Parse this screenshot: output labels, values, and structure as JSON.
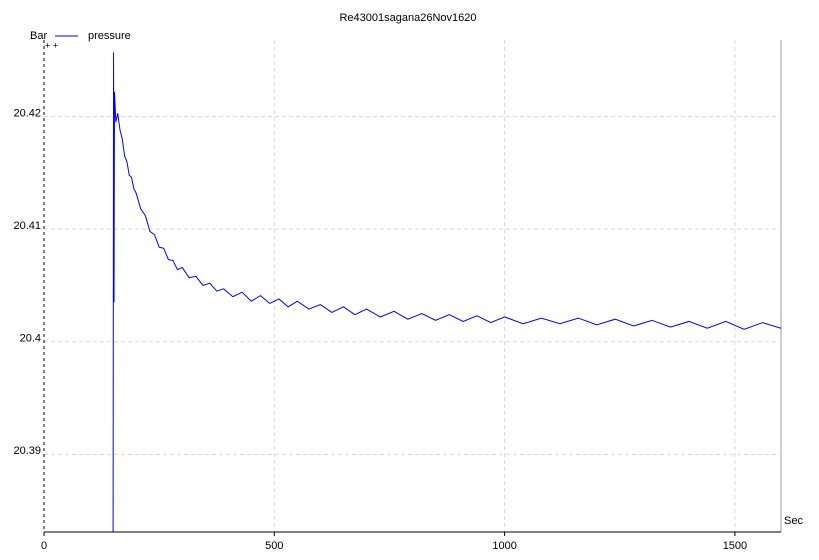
{
  "chart_data": {
    "type": "line",
    "title": "Re43001sagana26Nov1620",
    "y_label": "Bar",
    "x_label": "Sec",
    "x": [
      150,
      151,
      152,
      153,
      156,
      160,
      165,
      170,
      175,
      180,
      185,
      190,
      195,
      200,
      210,
      220,
      230,
      240,
      250,
      260,
      270,
      280,
      290,
      300,
      315,
      330,
      345,
      360,
      375,
      390,
      410,
      430,
      450,
      470,
      490,
      510,
      530,
      550,
      575,
      600,
      625,
      650,
      675,
      700,
      730,
      760,
      790,
      820,
      850,
      880,
      910,
      940,
      970,
      1000,
      1040,
      1080,
      1120,
      1160,
      1200,
      1240,
      1280,
      1320,
      1360,
      1400,
      1440,
      1480,
      1520,
      1560,
      1600
    ],
    "series": [
      {
        "name": "pressure",
        "color": "#0000ff",
        "values": [
          20.3831,
          20.4257,
          20.4035,
          20.4222,
          20.4195,
          20.4203,
          20.4188,
          20.418,
          20.4165,
          20.416,
          20.4148,
          20.4146,
          20.4136,
          20.4132,
          20.4118,
          20.4112,
          20.4098,
          20.4095,
          20.4084,
          20.4083,
          20.4073,
          20.4072,
          20.4064,
          20.4066,
          20.4057,
          20.4058,
          20.405,
          20.4052,
          20.4045,
          20.4047,
          20.404,
          20.4044,
          20.4036,
          20.4041,
          20.4034,
          20.4038,
          20.4031,
          20.4036,
          20.4029,
          20.4033,
          20.4026,
          20.4031,
          20.4024,
          20.4029,
          20.4022,
          20.4027,
          20.402,
          20.4025,
          20.4019,
          20.4024,
          20.4018,
          20.4023,
          20.4017,
          20.4022,
          20.4016,
          20.4021,
          20.4016,
          20.4021,
          20.4015,
          20.402,
          20.4014,
          20.4019,
          20.4013,
          20.4018,
          20.4012,
          20.4018,
          20.4011,
          20.4017,
          20.4012
        ]
      }
    ],
    "xlim": [
      0,
      1600
    ],
    "xticks": [
      0,
      500,
      1000,
      1500
    ],
    "ylim": [
      20.3831,
      20.4268
    ],
    "yticks": [
      20.39,
      20.4,
      20.41,
      20.42
    ],
    "grid": true
  }
}
